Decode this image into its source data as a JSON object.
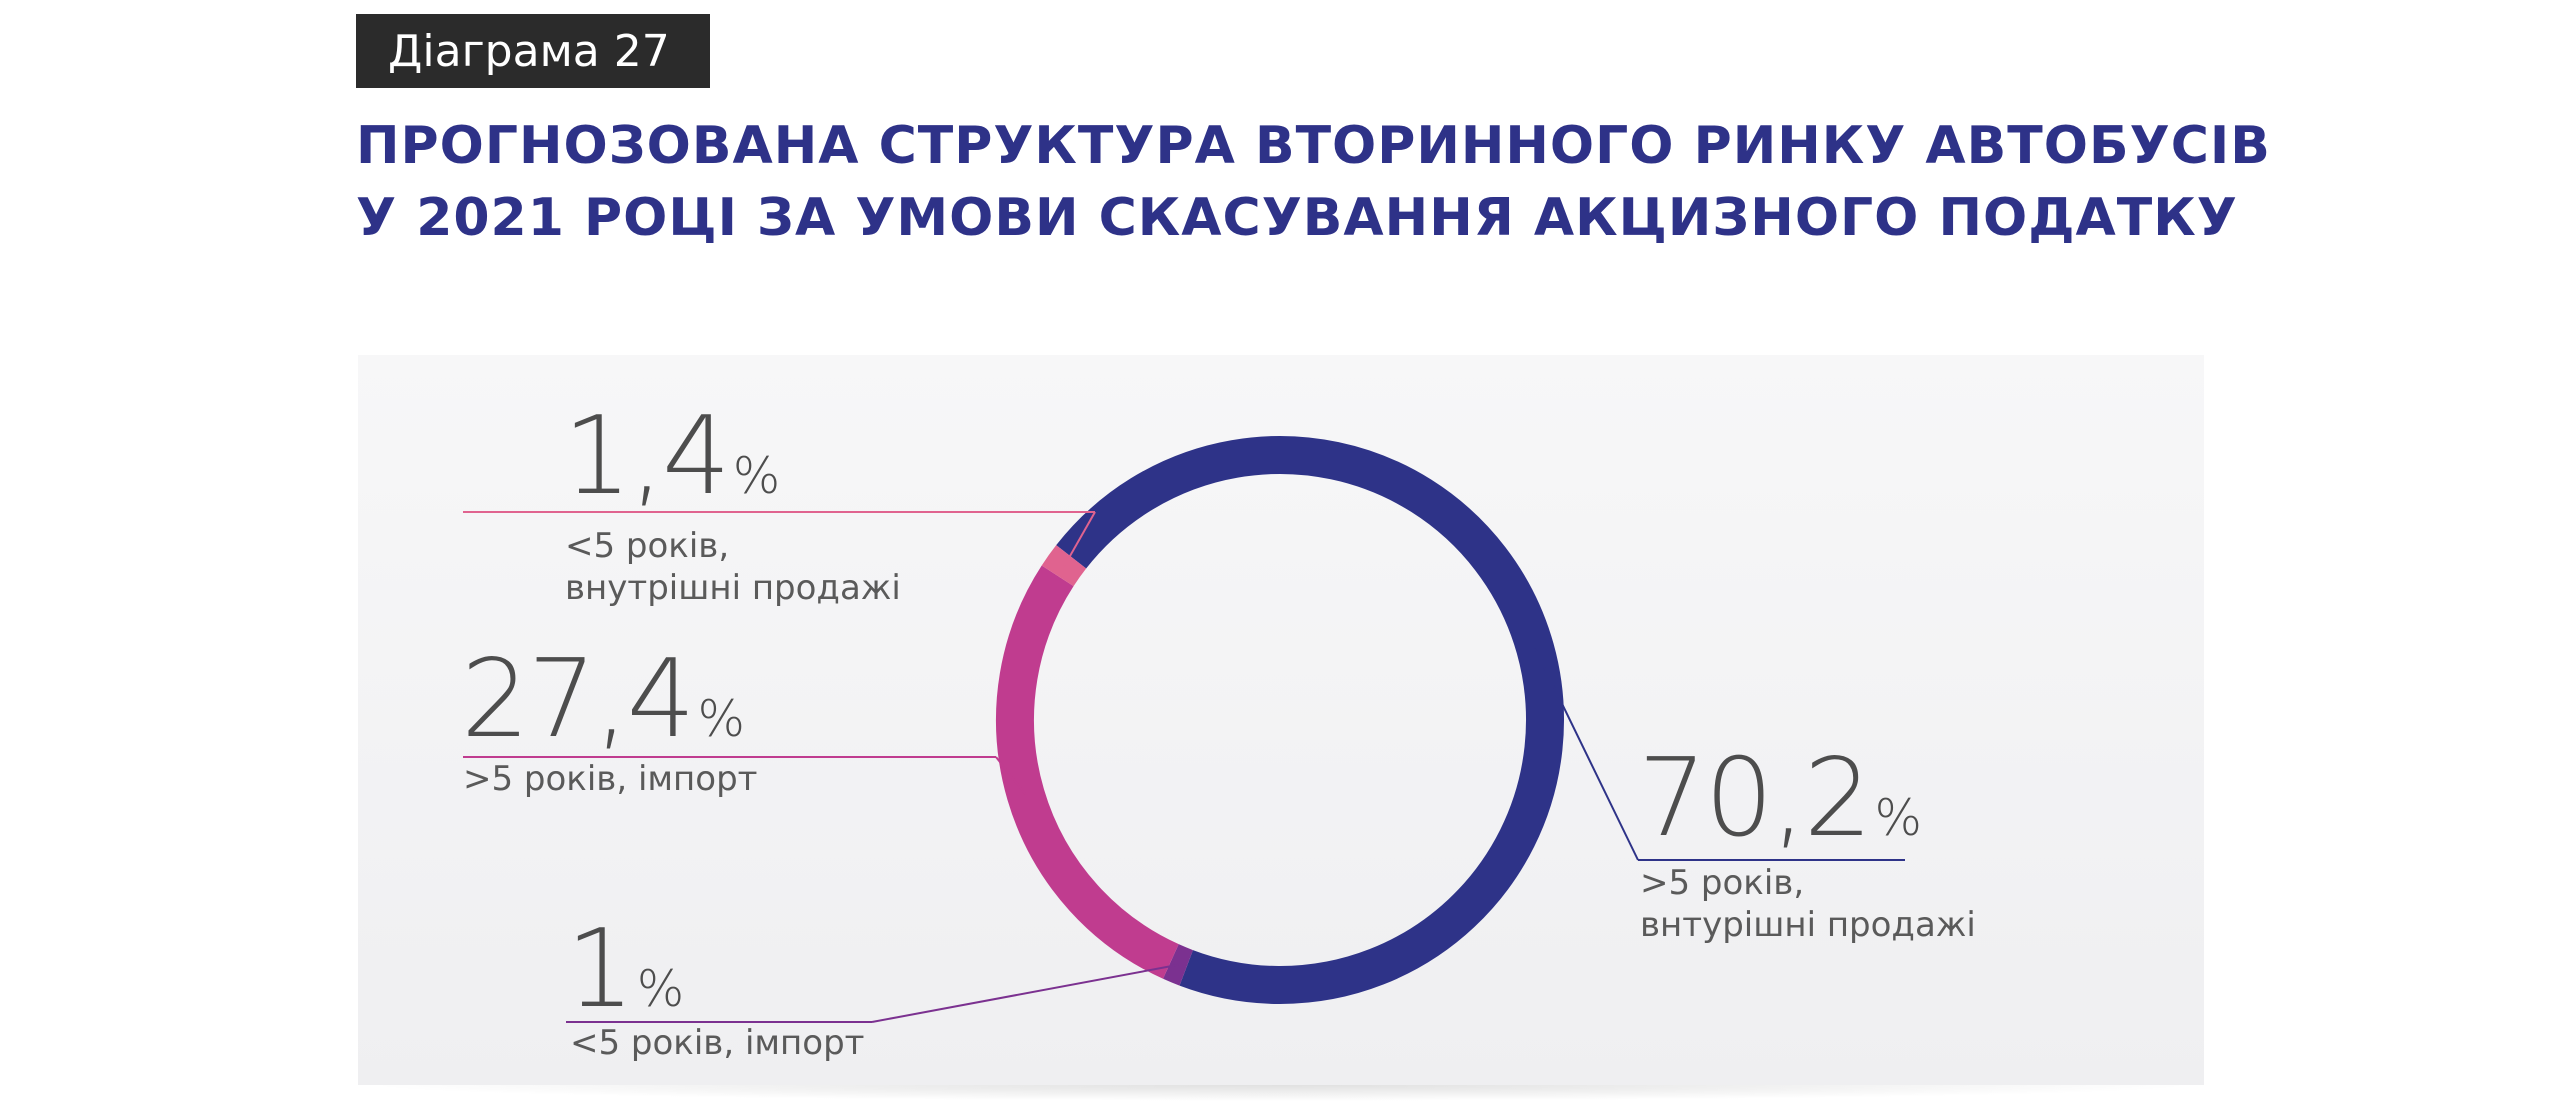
{
  "badge": "Діаграма 27",
  "title_lines": [
    "ПРОГНОЗОВАНА СТРУКТУРА ВТОРИННОГО РИНКУ АВТОБУСІВ",
    "У 2021 РОЦІ ЗА УМОВИ СКАСУВАННЯ АКЦИЗНОГО ПОДАТКУ"
  ],
  "chart_data": {
    "type": "pie",
    "title": "ПРОГНОЗОВАНА СТРУКТУРА ВТОРИННОГО РИНКУ АВТОБУСІВ У 2021 РОЦІ ЗА УМОВИ СКАСУВАННЯ АКЦИЗНОГО ПОДАТКУ",
    "donut": true,
    "percent_symbol": "%",
    "slices": [
      {
        "value": 70.2,
        "value_label": "70,2",
        "label_lines": [
          ">5 років,",
          "внтурішні продажі"
        ],
        "color": "#2e3388"
      },
      {
        "value": 1,
        "value_label": "1",
        "label_lines": [
          "<5 років, імпорт"
        ],
        "color": "#7b3190"
      },
      {
        "value": 27.4,
        "value_label": "27,4",
        "label_lines": [
          ">5 років, імпорт"
        ],
        "color": "#c03c8f"
      },
      {
        "value": 1.4,
        "value_label": "1,4",
        "label_lines": [
          "<5 років,",
          "внутрішні продажі"
        ],
        "color": "#e0638f"
      }
    ]
  }
}
